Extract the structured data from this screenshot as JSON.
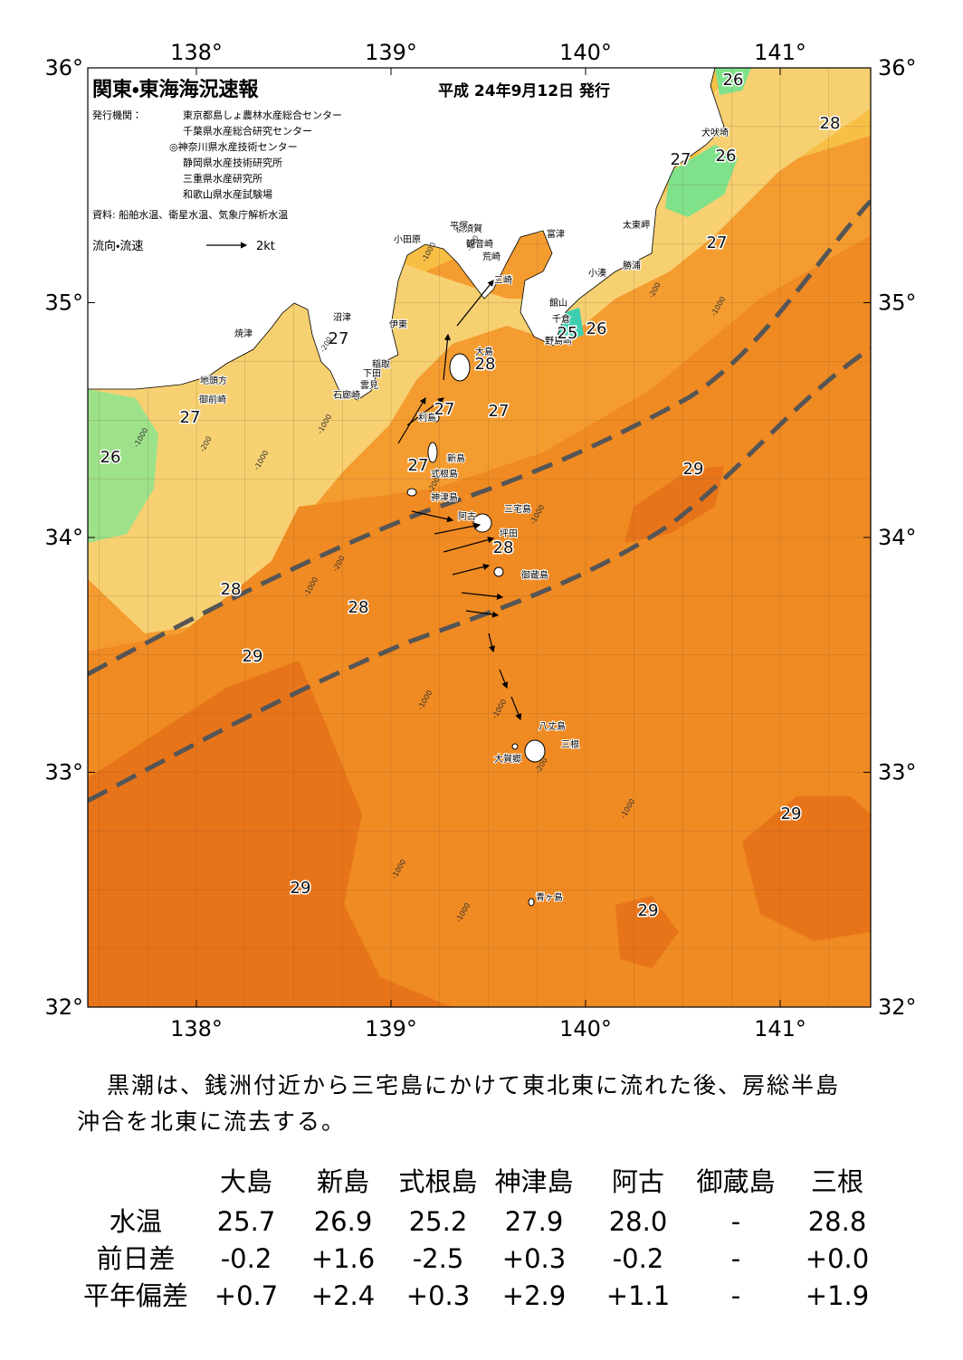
{
  "header": {
    "title": "関東・東海海況速報",
    "date": "平成 24年9月12日 発行",
    "publisher_label": "発行機関：",
    "publishers": [
      "東京都島しょ農林水産総合センター",
      "千葉県水産総合研究センター",
      "◎神奈川県水産技術センター",
      "静岡県水産技術研究所",
      "三重県水産研究所",
      "和歌山県水産試験場"
    ],
    "source": "資料: 船舶水温、衛星水温、気象庁解析水温",
    "legend_label": "流向・流速",
    "legend_speed": "2kt"
  },
  "map": {
    "lon_ticks": [
      {
        "value": 138,
        "label": "138°"
      },
      {
        "value": 139,
        "label": "139°"
      },
      {
        "value": 140,
        "label": "140°"
      },
      {
        "value": 141,
        "label": "141°"
      }
    ],
    "lat_ticks": [
      {
        "value": 36,
        "label": "36°"
      },
      {
        "value": 35,
        "label": "35°"
      },
      {
        "value": 34,
        "label": "34°"
      },
      {
        "value": 33,
        "label": "33°"
      },
      {
        "value": 32,
        "label": "32°"
      }
    ],
    "places": [
      "犬吠埼",
      "太東岬",
      "勝浦",
      "小湊",
      "館山",
      "千倉",
      "野島崎",
      "富津",
      "横須賀",
      "観音崎",
      "荒崎",
      "三崎",
      "平塚",
      "小田原",
      "沼津",
      "伊東",
      "焼津",
      "稲取",
      "下田",
      "雲見",
      "石廊崎",
      "地頭方",
      "御前崎",
      "大島",
      "利島",
      "新島",
      "式根島",
      "神津島",
      "三宅島",
      "坪田",
      "阿古",
      "御蔵島",
      "八丈島",
      "三根",
      "大賀郷",
      "青ヶ島"
    ],
    "temp_labels": [
      26,
      28,
      27,
      26,
      27,
      25,
      26,
      27,
      28,
      27,
      27,
      27,
      26,
      27,
      29,
      28,
      28,
      28,
      29,
      29,
      29,
      29
    ],
    "depth_labels": [
      -200,
      -1000,
      -200,
      -1000,
      -200,
      -1000,
      -200,
      -1000,
      -1000,
      -200,
      -1000,
      -1000,
      -1000,
      -1000,
      -1000,
      -200,
      -1000,
      -200,
      -1000
    ]
  },
  "summary": [
    "黒潮は、銭洲付近から三宅島にかけて東北東に流れた後、房総半島",
    "沖合を北東に流去する。"
  ],
  "table": {
    "columns": [
      "大島",
      "新島",
      "式根島",
      "神津島",
      "阿古",
      "御蔵島",
      "三根"
    ],
    "rows": [
      [
        "水温",
        "25.7",
        "26.9",
        "25.2",
        "27.9",
        "28.0",
        "-",
        "28.8"
      ],
      [
        "前日差",
        "-0.2",
        "+1.6",
        "-2.5",
        "+0.3",
        "-0.2",
        "-",
        "+0.0"
      ],
      [
        "平年偏差",
        "+0.7",
        "+2.4",
        "+0.3",
        "+2.9",
        "+1.1",
        "-",
        "+1.9"
      ]
    ]
  }
}
